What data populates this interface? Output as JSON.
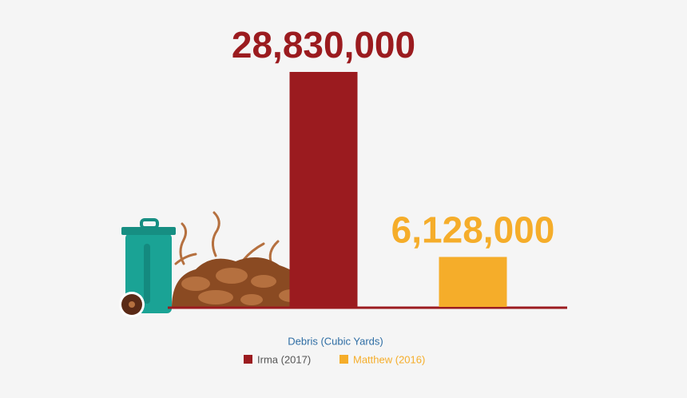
{
  "chart_data": {
    "type": "bar",
    "x_label": "Debris (Cubic Yards)",
    "categories": [
      null
    ],
    "ylim": [
      0,
      28830000
    ],
    "series": [
      {
        "name": "Irma (2017)",
        "color": "#9b1b1f",
        "values": [
          28830000
        ],
        "value_labels": [
          "28,830,000"
        ]
      },
      {
        "name": "Matthew (2016)",
        "color": "#f5ad2a",
        "values": [
          6128000
        ],
        "value_labels": [
          "6,128,000"
        ]
      }
    ]
  }
}
